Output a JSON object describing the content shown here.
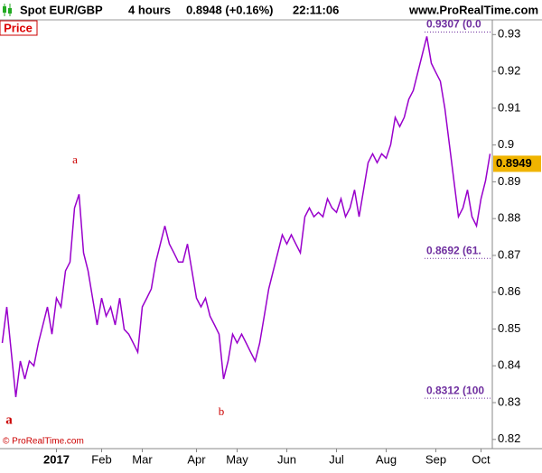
{
  "header": {
    "instrument": "Spot EUR/GBP",
    "period": "4 hours",
    "quote": "0.8948 (+0.16%)",
    "time": "22:11:06",
    "site": "www.ProRealTime.com"
  },
  "panel_label": "Price",
  "footer": "© ProRealTime.com",
  "chart_data": {
    "type": "line",
    "color": "#9900cc",
    "categories": [
      null,
      null,
      null,
      null,
      null,
      null,
      null,
      null,
      null,
      null,
      null,
      null,
      "2017",
      null,
      null,
      null,
      null,
      null,
      null,
      null,
      null,
      null,
      "Feb",
      null,
      null,
      null,
      null,
      null,
      null,
      null,
      null,
      "Mar",
      null,
      null,
      null,
      null,
      null,
      null,
      null,
      null,
      null,
      null,
      null,
      "Apr",
      null,
      null,
      null,
      null,
      null,
      null,
      null,
      null,
      "May",
      null,
      null,
      null,
      null,
      null,
      null,
      null,
      null,
      null,
      null,
      "Jun",
      null,
      null,
      null,
      null,
      null,
      null,
      null,
      null,
      null,
      null,
      "Jul",
      null,
      null,
      null,
      null,
      null,
      null,
      null,
      null,
      null,
      null,
      "Aug",
      null,
      null,
      null,
      null,
      null,
      null,
      null,
      null,
      null,
      null,
      "Sep",
      null,
      null,
      null,
      null,
      null,
      null,
      null,
      null,
      null,
      "Oct",
      null,
      null
    ],
    "values": [
      0.8462,
      0.856,
      0.8437,
      0.8315,
      0.8413,
      0.8364,
      0.8413,
      0.84,
      0.8462,
      0.8511,
      0.856,
      0.8486,
      0.8584,
      0.856,
      0.8658,
      0.8682,
      0.8829,
      0.8866,
      0.8707,
      0.8658,
      0.8584,
      0.8511,
      0.8584,
      0.8535,
      0.856,
      0.8511,
      0.8584,
      0.8499,
      0.8486,
      0.8462,
      0.8437,
      0.856,
      0.8584,
      0.8609,
      0.8682,
      0.8731,
      0.878,
      0.8731,
      0.8707,
      0.8682,
      0.8682,
      0.8731,
      0.8658,
      0.8584,
      0.856,
      0.8584,
      0.8535,
      0.8511,
      0.8486,
      0.8364,
      0.8413,
      0.8486,
      0.8462,
      0.8486,
      0.8462,
      0.8437,
      0.8413,
      0.8462,
      0.8535,
      0.8609,
      0.8658,
      0.8707,
      0.8756,
      0.8731,
      0.8756,
      0.8731,
      0.8707,
      0.8805,
      0.8829,
      0.8805,
      0.8817,
      0.8805,
      0.8854,
      0.8829,
      0.8817,
      0.8854,
      0.8805,
      0.8829,
      0.8878,
      0.8805,
      0.8878,
      0.8952,
      0.8976,
      0.8952,
      0.8976,
      0.8964,
      0.9001,
      0.9075,
      0.905,
      0.9075,
      0.9124,
      0.9148,
      0.9197,
      0.9246,
      0.9295,
      0.9222,
      0.9197,
      0.9173,
      0.9099,
      0.9001,
      0.8903,
      0.8805,
      0.8829,
      0.8878,
      0.8805,
      0.878,
      0.8854,
      0.8903,
      0.8976
    ],
    "ylim": [
      0.8175,
      0.934
    ],
    "yticks": [
      0.82,
      0.83,
      0.84,
      0.85,
      0.86,
      0.87,
      0.88,
      0.89,
      0.9,
      0.91,
      0.92,
      0.93
    ],
    "last_price": {
      "value": 0.8949,
      "label": "0.8949"
    },
    "levels": [
      {
        "value": 0.9307,
        "label": "0.9307 (0.0"
      },
      {
        "value": 0.8692,
        "label": "0.8692 (61."
      },
      {
        "value": 0.8312,
        "label": "0.8312 (100"
      }
    ],
    "annotations": [
      "a",
      "b",
      "a"
    ]
  }
}
